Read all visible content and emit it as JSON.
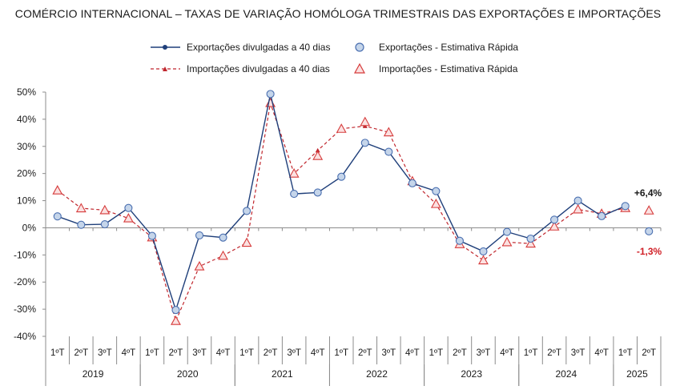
{
  "chart_data": {
    "type": "line",
    "title": "COMÉRCIO INTERNACIONAL – TAXAS DE VARIAÇÃO HOMÓLOGA TRIMESTRAIS DAS EXPORTAÇÕES E IMPORTAÇÕES",
    "ylim": [
      -40,
      50
    ],
    "y_ticks": [
      "50%",
      "40%",
      "30%",
      "20%",
      "10%",
      "0%",
      "-10%",
      "-20%",
      "-30%",
      "-40%"
    ],
    "categories": [
      "1ºT",
      "2ºT",
      "3ºT",
      "4ºT",
      "1ºT",
      "2ºT",
      "3ºT",
      "4ºT",
      "1ºT",
      "2ºT",
      "3ºT",
      "4ºT",
      "1ºT",
      "2ºT",
      "3ºT",
      "4ºT",
      "1ºT",
      "2ºT",
      "3ºT",
      "4ºT",
      "1ºT",
      "2ºT",
      "3ºT",
      "4ºT",
      "1ºT",
      "2ºT"
    ],
    "years": [
      {
        "label": "2019",
        "start": 0,
        "count": 4
      },
      {
        "label": "2020",
        "start": 4,
        "count": 4
      },
      {
        "label": "2021",
        "start": 8,
        "count": 4
      },
      {
        "label": "2022",
        "start": 12,
        "count": 4
      },
      {
        "label": "2023",
        "start": 16,
        "count": 4
      },
      {
        "label": "2024",
        "start": 20,
        "count": 4
      },
      {
        "label": "2025",
        "start": 24,
        "count": 2
      }
    ],
    "series": [
      {
        "name": "Exportações divulgadas a 40 dias",
        "color": "#1f3f7a",
        "style": "solid",
        "values": [
          4.2,
          1.1,
          1.3,
          7.3,
          -3.0,
          -30.3,
          -2.8,
          -3.6,
          6.2,
          49.3,
          12.5,
          13.0,
          18.8,
          31.3,
          28.0,
          16.4,
          13.5,
          -4.8,
          -8.7,
          -1.5,
          -4.0,
          3.0,
          10.0,
          4.3,
          8.0,
          null
        ]
      },
      {
        "name": "Exportações - Estimativa Rápida",
        "color": "#4a6fb0",
        "fill": "#c5d5ea",
        "marker": "circle",
        "values": [
          4.2,
          1.1,
          1.3,
          7.3,
          -3.0,
          -30.3,
          -2.8,
          -3.6,
          6.2,
          49.3,
          12.5,
          13.0,
          18.8,
          31.3,
          28.0,
          16.4,
          13.5,
          -4.8,
          -8.7,
          -1.5,
          -4.0,
          3.0,
          10.0,
          4.3,
          8.0,
          -1.3
        ]
      },
      {
        "name": "Importações divulgadas a 40 dias",
        "color": "#c0262d",
        "style": "dashed",
        "values": [
          13.8,
          7.2,
          6.5,
          3.5,
          -3.5,
          -34.3,
          -14.2,
          -10.3,
          -5.5,
          46.0,
          20.0,
          28.5,
          36.5,
          37.5,
          35.2,
          17.2,
          8.8,
          -6.0,
          -12.0,
          -5.3,
          -5.8,
          0.5,
          6.8,
          5.2,
          7.3,
          null
        ]
      },
      {
        "name": "Importações - Estimativa Rápida",
        "color": "#d63b3b",
        "fill": "#fbe1e1",
        "marker": "triangle",
        "values": [
          13.8,
          7.2,
          6.5,
          3.5,
          -3.5,
          -34.3,
          -14.2,
          -10.3,
          -5.5,
          46.0,
          20.0,
          26.5,
          36.5,
          39.0,
          35.2,
          17.2,
          8.8,
          -6.0,
          -12.0,
          -5.3,
          -5.8,
          0.5,
          6.8,
          5.2,
          7.3,
          6.4
        ]
      }
    ],
    "annotations": [
      {
        "text": "+6,4%",
        "color": "#1a1a1a"
      },
      {
        "text": "-1,3%",
        "color": "#d01f26"
      }
    ],
    "grid": false,
    "legend": "top"
  }
}
